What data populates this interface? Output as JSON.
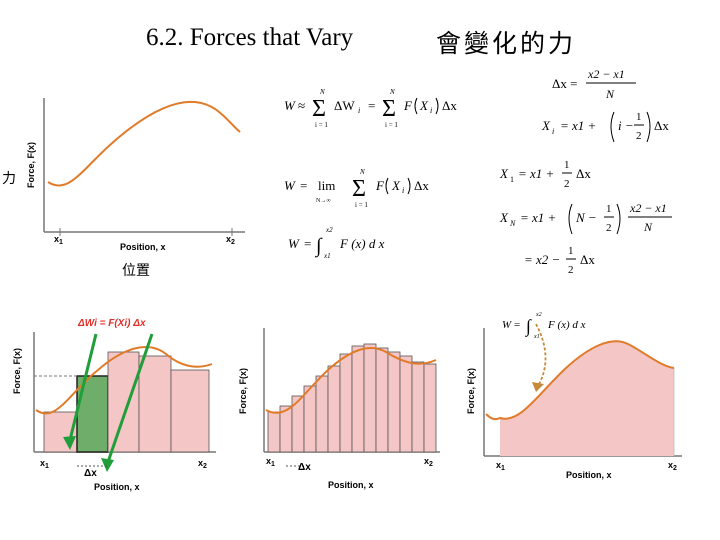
{
  "title": {
    "english": "6.2. Forces that Vary",
    "chinese": "會變化的力"
  },
  "labels": {
    "force_zh": "力",
    "position_zh": "位置",
    "force_axis": "Force, F(x)",
    "position_axis": "Position, x",
    "x1": "x",
    "x1_sub": "1",
    "x2": "x",
    "x2_sub": "2",
    "dx": "Δx",
    "delta_w_label": "ΔWi = F(Xi) Δx"
  },
  "equations": {
    "eq1": "W ≈ Σ ΔWi = Σ F(Xi) Δx, i = 1 … N",
    "eq2": "W = lim N→∞ Σ F(Xi) Δx, i = 1 … N",
    "eq3": "W = ∫ from x1 to x2 of F(x) dx",
    "eq4": "Δx = (x2 − x1) / N",
    "eq5": "Xi = x1 + (i − 1/2) Δx",
    "eq6": "X1 = x1 + (1/2) Δx",
    "eq7": "XN = x1 + (N − 1/2)(x2 − x1)/N",
    "eq8": "= x2 − (1/2) Δx",
    "eq9": "W = ∫ from x1 to x2 of F(x) dx"
  },
  "eq_text": {
    "W": "W",
    "approx": "≈",
    "eq": "=",
    "minus": "−",
    "plus": "+",
    "sum": "Σ",
    "int": "∫",
    "N": "N",
    "i1": "i = 1",
    "dWi": "ΔW",
    "i": "i",
    "F": "F",
    "X": "X",
    "dx": "Δx",
    "lim": "lim",
    "Ninf": "N→∞",
    "Fx": "F (x) d x",
    "x1": "x1",
    "x2": "x2",
    "one": "1",
    "two": "2",
    "dxeq": "Δx =",
    "x2mx1": "x2 − x1",
    "Xi": "X",
    "x1plus": "= x1 +",
    "im": "i −",
    "X1": "X",
    "half_dx": "Δx",
    "XN": "X",
    "Nm": "N −",
    "eqx2": "= x2 −"
  },
  "colors": {
    "curve": "#e07b2a",
    "fill": "#f5c6c6",
    "highlight": "#6fae6a",
    "arrow": "#1f9e3a",
    "label_red": "#e0302a"
  }
}
